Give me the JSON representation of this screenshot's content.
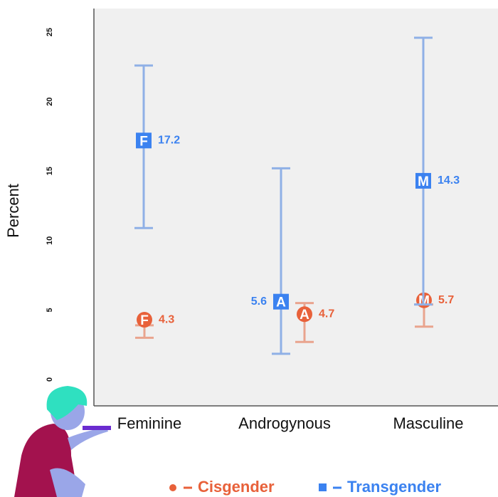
{
  "chart_data": {
    "type": "errorbar",
    "ylabel": "Percent",
    "categories": [
      "Feminine",
      "Androgynous",
      "Masculine"
    ],
    "marker_letters": [
      "F",
      "A",
      "M"
    ],
    "ylim": [
      -1.9,
      26.7
    ],
    "yticks": [
      0,
      5,
      10,
      15,
      20,
      25
    ],
    "series": [
      {
        "name": "Cisgender",
        "color": "#e8613a",
        "bar_color": "#e9a48e",
        "marker": "circle",
        "values": [
          4.3,
          4.7,
          5.7
        ],
        "lower": [
          3.0,
          2.7,
          3.8
        ],
        "upper": [
          3.9,
          5.5,
          5.4
        ]
      },
      {
        "name": "Transgender",
        "color": "#3b82f0",
        "bar_color": "#8fb0e6",
        "marker": "square",
        "values": [
          17.2,
          5.6,
          14.3
        ],
        "lower": [
          10.9,
          1.85,
          5.4
        ],
        "upper": [
          22.6,
          15.2,
          24.6
        ]
      }
    ]
  }
}
